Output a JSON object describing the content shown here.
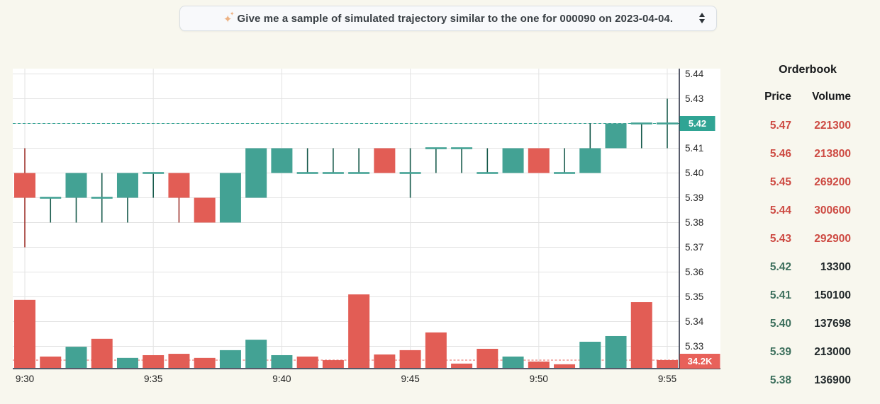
{
  "query_selector": {
    "sparkles_icon": "✦",
    "label": "Give me a sample of simulated trajectory similar to the one for 000090 on 2023-04-04.",
    "stepper_icon": "up-down-arrows"
  },
  "orderbook": {
    "title": "Orderbook",
    "col_price": "Price",
    "col_volume": "Volume",
    "rows": [
      {
        "price": "5.47",
        "volume": "221300",
        "side": "ask"
      },
      {
        "price": "5.46",
        "volume": "213800",
        "side": "ask"
      },
      {
        "price": "5.45",
        "volume": "269200",
        "side": "ask"
      },
      {
        "price": "5.44",
        "volume": "300600",
        "side": "ask"
      },
      {
        "price": "5.43",
        "volume": "292900",
        "side": "ask"
      },
      {
        "price": "5.42",
        "volume": "13300",
        "side": "bid"
      },
      {
        "price": "5.41",
        "volume": "150100",
        "side": "bid"
      },
      {
        "price": "5.40",
        "volume": "137698",
        "side": "bid"
      },
      {
        "price": "5.39",
        "volume": "213000",
        "side": "bid"
      },
      {
        "price": "5.38",
        "volume": "136900",
        "side": "bid"
      }
    ],
    "ask_color": "#cd4a42",
    "bid_price_color": "#3c6f5c",
    "bid_volume_color": "#21282a"
  },
  "chart_data": {
    "type": "candlestick",
    "x": [
      "9:30",
      "9:31",
      "9:32",
      "9:33",
      "9:34",
      "9:35",
      "9:36",
      "9:37",
      "9:38",
      "9:39",
      "9:40",
      "9:41",
      "9:42",
      "9:43",
      "9:44",
      "9:45",
      "9:46",
      "9:47",
      "9:48",
      "9:49",
      "9:50",
      "9:51",
      "9:52",
      "9:53",
      "9:54",
      "9:55"
    ],
    "x_tick_labels": [
      "9:30",
      "9:35",
      "9:40",
      "9:45",
      "9:50",
      "9:55"
    ],
    "y_tick_labels": [
      "5.44",
      "5.43",
      "5.42",
      "5.41",
      "5.40",
      "5.39",
      "5.38",
      "5.37",
      "5.36",
      "5.35",
      "5.34",
      "5.33"
    ],
    "ylim": [
      5.325,
      5.445
    ],
    "grid": true,
    "candles_ohlc": [
      [
        5.4,
        5.41,
        5.37,
        5.39
      ],
      [
        5.39,
        5.39,
        5.38,
        5.39
      ],
      [
        5.39,
        5.4,
        5.38,
        5.4
      ],
      [
        5.39,
        5.4,
        5.38,
        5.39
      ],
      [
        5.39,
        5.4,
        5.38,
        5.4
      ],
      [
        5.4,
        5.4,
        5.39,
        5.4
      ],
      [
        5.4,
        5.4,
        5.38,
        5.39
      ],
      [
        5.39,
        5.39,
        5.38,
        5.38
      ],
      [
        5.38,
        5.4,
        5.38,
        5.4
      ],
      [
        5.39,
        5.41,
        5.39,
        5.41
      ],
      [
        5.4,
        5.41,
        5.4,
        5.41
      ],
      [
        5.4,
        5.41,
        5.4,
        5.4
      ],
      [
        5.4,
        5.41,
        5.4,
        5.4
      ],
      [
        5.4,
        5.41,
        5.4,
        5.4
      ],
      [
        5.41,
        5.41,
        5.4,
        5.4
      ],
      [
        5.4,
        5.41,
        5.39,
        5.4
      ],
      [
        5.41,
        5.41,
        5.4,
        5.41
      ],
      [
        5.41,
        5.41,
        5.4,
        5.41
      ],
      [
        5.4,
        5.41,
        5.4,
        5.4
      ],
      [
        5.4,
        5.41,
        5.4,
        5.41
      ],
      [
        5.41,
        5.41,
        5.4,
        5.4
      ],
      [
        5.4,
        5.41,
        5.4,
        5.4
      ],
      [
        5.4,
        5.42,
        5.4,
        5.41
      ],
      [
        5.41,
        5.42,
        5.41,
        5.42
      ],
      [
        5.42,
        5.42,
        5.41,
        5.42
      ],
      [
        5.42,
        5.43,
        5.41,
        5.42
      ]
    ],
    "candle_dirs": [
      "down",
      "up",
      "up",
      "up",
      "up",
      "up",
      "down",
      "down",
      "up",
      "up",
      "up",
      "up",
      "up",
      "up",
      "down",
      "up",
      "up",
      "up",
      "up",
      "up",
      "down",
      "up",
      "up",
      "up",
      "up",
      "up"
    ],
    "volumes_k": [
      299,
      50,
      93,
      128,
      44,
      56,
      62,
      44,
      78,
      124,
      56,
      50,
      34,
      323,
      59,
      78,
      156,
      19,
      84,
      50,
      28,
      16,
      115,
      140,
      289,
      34.2
    ],
    "volume_dirs": [
      "down",
      "down",
      "up",
      "down",
      "up",
      "down",
      "down",
      "down",
      "up",
      "up",
      "up",
      "down",
      "down",
      "down",
      "down",
      "down",
      "down",
      "down",
      "down",
      "up",
      "down",
      "down",
      "up",
      "up",
      "down",
      "down"
    ],
    "price_line": 5.42,
    "last_price_label": "5.42",
    "volume_line_k": 34.2,
    "last_volume_label": "34.2K",
    "legend": "none",
    "colors": {
      "up": "#43a294",
      "down": "#e25d55",
      "up_wick": "#175a4b",
      "down_wick": "#9e332d",
      "price_badge": "#30a494",
      "volume_badge": "#e8615a",
      "grid": "#e3e3e3",
      "axis": "#20263a",
      "plot_bg": "#ffffff",
      "page_bg": "#f8f7ee",
      "tick_text": "#2b2b2b"
    }
  }
}
